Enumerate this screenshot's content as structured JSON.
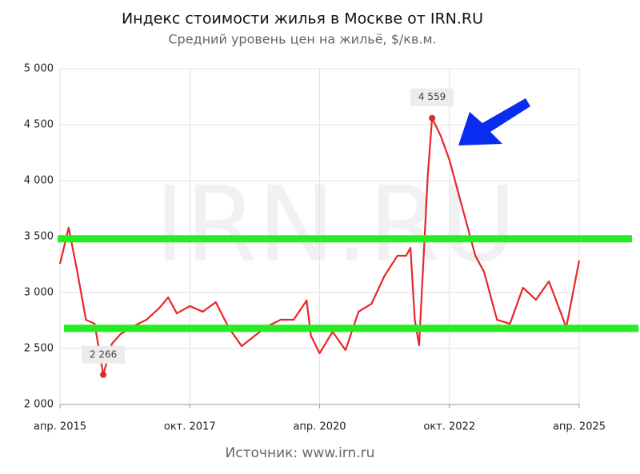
{
  "chart_data": {
    "type": "line",
    "title": "Индекс стоимости жилья в Москве от IRN.RU",
    "subtitle": "Средний уровень цен на жильё, $/кв.м.",
    "source": "Источник: www.irn.ru",
    "watermark": "IRN.RU",
    "x": [
      "2015-04",
      "2015-06",
      "2015-08",
      "2015-10",
      "2015-12",
      "2016-02",
      "2016-04",
      "2016-06",
      "2016-09",
      "2016-12",
      "2017-03",
      "2017-05",
      "2017-07",
      "2017-10",
      "2018-01",
      "2018-04",
      "2018-07",
      "2018-10",
      "2019-01",
      "2019-04",
      "2019-07",
      "2019-10",
      "2020-01",
      "2020-02",
      "2020-04",
      "2020-07",
      "2020-10",
      "2021-01",
      "2021-04",
      "2021-07",
      "2021-10",
      "2021-12",
      "2022-01",
      "2022-02",
      "2022-03",
      "2022-05",
      "2022-06",
      "2022-08",
      "2022-10",
      "2023-01",
      "2023-04",
      "2023-06",
      "2023-09",
      "2023-12",
      "2024-03",
      "2024-06",
      "2024-09",
      "2024-12",
      "2025-01",
      "2025-04"
    ],
    "series": [
      {
        "name": "Индекс IRN.RU",
        "color": "#e8262a",
        "values": [
          3257,
          3579,
          3186,
          2757,
          2721,
          2266,
          2543,
          2629,
          2700,
          2757,
          2864,
          2957,
          2814,
          2879,
          2829,
          2914,
          2686,
          2521,
          2614,
          2700,
          2757,
          2757,
          2929,
          2614,
          2457,
          2650,
          2486,
          2829,
          2900,
          3150,
          3329,
          3329,
          3400,
          2757,
          2529,
          4043,
          4559,
          4400,
          4186,
          3757,
          3329,
          3186,
          2757,
          2721,
          3043,
          2936,
          3100,
          2793,
          2686,
          3286
        ],
        "value_labels": [
          null,
          null,
          null,
          null,
          null,
          "2 266",
          null,
          null,
          null,
          null,
          null,
          null,
          null,
          null,
          null,
          null,
          null,
          null,
          null,
          null,
          null,
          null,
          null,
          null,
          null,
          null,
          null,
          null,
          null,
          null,
          null,
          null,
          null,
          null,
          null,
          null,
          "4 559",
          null,
          null,
          null,
          null,
          null,
          null,
          null,
          null,
          null,
          null,
          null,
          null,
          null
        ]
      }
    ],
    "xlim": [
      "2015-04",
      "2025-04"
    ],
    "xticks": [
      {
        "value": "2015-04",
        "label": "апр. 2015"
      },
      {
        "value": "2017-10",
        "label": "окт. 2017"
      },
      {
        "value": "2020-04",
        "label": "апр. 2020"
      },
      {
        "value": "2022-10",
        "label": "окт. 2022"
      },
      {
        "value": "2025-04",
        "label": "апр. 2025"
      }
    ],
    "ylim": [
      2000,
      5000
    ],
    "yticks": [
      {
        "value": 2000,
        "label": "2 000"
      },
      {
        "value": 2500,
        "label": "2 500"
      },
      {
        "value": 3000,
        "label": "3 000"
      },
      {
        "value": 3500,
        "label": "3 500"
      },
      {
        "value": 4000,
        "label": "4 000"
      },
      {
        "value": 4500,
        "label": "4 500"
      },
      {
        "value": 5000,
        "label": "5 000"
      }
    ],
    "grid": true,
    "reference_lines": [
      {
        "value": 3480,
        "color": "#22ee22"
      },
      {
        "value": 2680,
        "color": "#22ee22"
      }
    ]
  }
}
